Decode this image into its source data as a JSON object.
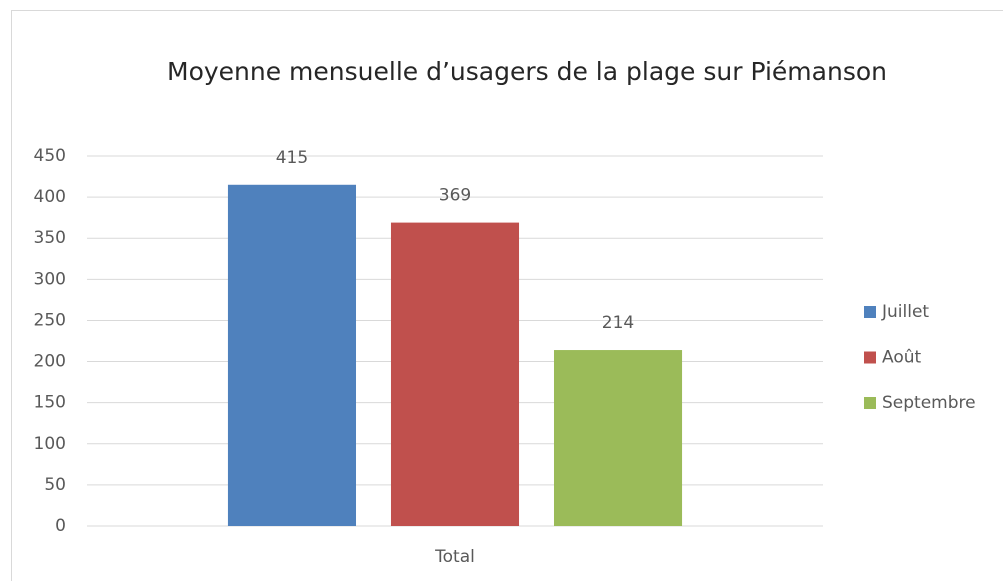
{
  "chart_data": {
    "type": "bar",
    "title": "Moyenne mensuelle d’usagers de la plage sur Piémanson",
    "categories": [
      "Total"
    ],
    "series": [
      {
        "name": "Juillet",
        "color": "#4f81bd",
        "values": [
          415
        ]
      },
      {
        "name": "Août",
        "color": "#c0504d",
        "values": [
          369
        ]
      },
      {
        "name": "Septembre",
        "color": "#9bbb59",
        "values": [
          214
        ]
      }
    ],
    "ylim": [
      0,
      450
    ],
    "yticks": [
      0,
      50,
      100,
      150,
      200,
      250,
      300,
      350,
      400,
      450
    ],
    "grid": true,
    "legend": "right",
    "data_labels": true
  }
}
